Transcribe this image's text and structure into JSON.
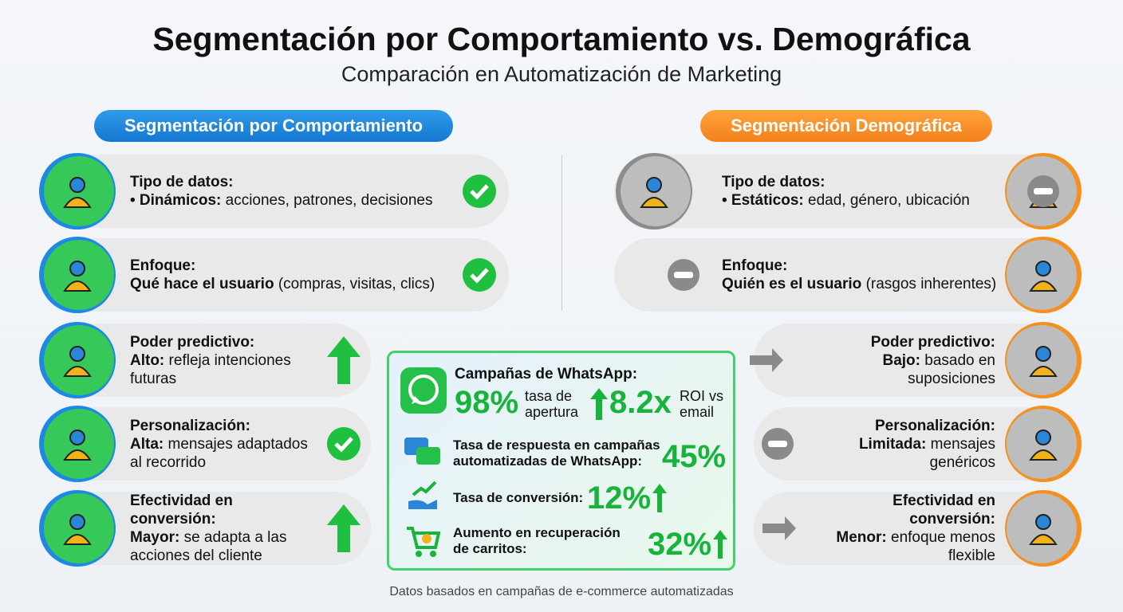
{
  "header": {
    "title": "Segmentación por Comportamiento vs. Demográfica",
    "subtitle": "Comparación en Automatización de Marketing"
  },
  "left": {
    "label": "Segmentación por Comportamiento",
    "rows": [
      {
        "heading": "Tipo de datos:",
        "bold": "• Dinámicos:",
        "text": "acciones, patrones, decisiones"
      },
      {
        "heading": "Enfoque:",
        "bold": "Qué hace el usuario",
        "text": "(compras, visitas, clics)"
      },
      {
        "heading": "Poder predictivo:",
        "bold": "Alto:",
        "text": "refleja intenciones futuras"
      },
      {
        "heading": "Personalización:",
        "bold": "Alta:",
        "text": "mensajes adaptados al recorrido"
      },
      {
        "heading": "Efectividad en conversión:",
        "bold": "Mayor:",
        "text": "se adapta a las acciones del cliente"
      }
    ]
  },
  "right": {
    "label": "Segmentación Demográfica",
    "rows": [
      {
        "heading": "Tipo de datos:",
        "bold": "• Estáticos:",
        "text": "edad, género, ubicación"
      },
      {
        "heading": "Enfoque:",
        "bold": "Quién es el usuario",
        "text": "(rasgos inherentes)"
      },
      {
        "heading": "Poder predictivo:",
        "bold": "Bajo:",
        "text": "basado en suposiciones"
      },
      {
        "heading": "Personalización:",
        "bold": "Limitada:",
        "text": "mensajes genéricos"
      },
      {
        "heading": "Efectividad en conversión:",
        "bold": "Menor:",
        "text": "enfoque menos flexible"
      }
    ]
  },
  "center": {
    "whatsapp": {
      "title": "Campañas de WhatsApp:",
      "stat1": "98%",
      "stat1_label": "tasa de apertura",
      "stat2": "8.2x",
      "stat2_label": "ROI vs email"
    },
    "response": {
      "label": "Tasa de respuesta en campañas automatizadas de WhatsApp:",
      "value": "45%"
    },
    "conversion": {
      "label": "Tasa de conversión:",
      "value": "12%"
    },
    "carts": {
      "label": "Aumento en recuperación de carritos:",
      "value": "32%"
    }
  },
  "footer": "Datos basados en campañas de e-commerce automatizadas"
}
